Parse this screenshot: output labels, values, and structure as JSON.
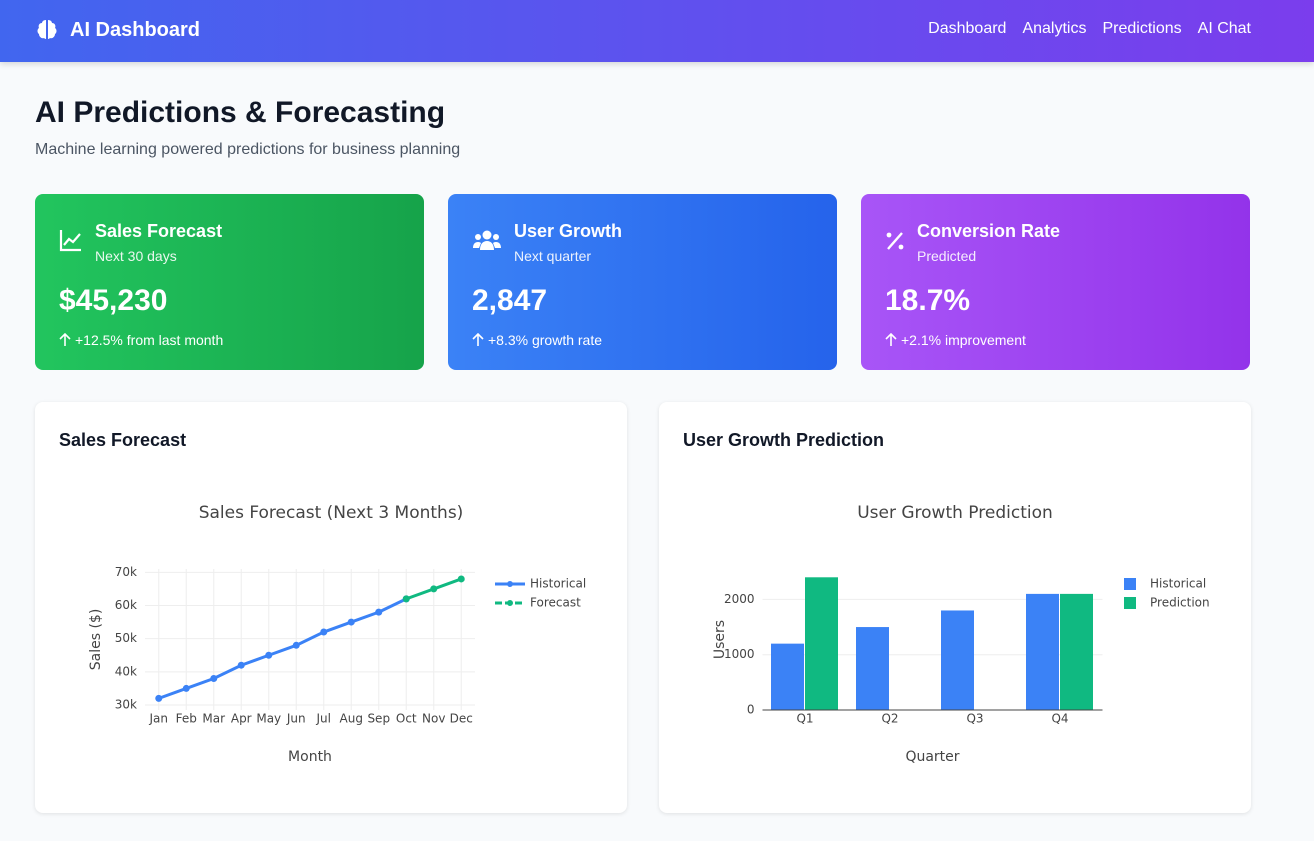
{
  "nav": {
    "brand": "AI Dashboard",
    "links": [
      "Dashboard",
      "Analytics",
      "Predictions",
      "AI Chat"
    ]
  },
  "header": {
    "title": "AI Predictions & Forecasting",
    "subtitle": "Machine learning powered predictions for business planning"
  },
  "cards": [
    {
      "title": "Sales Forecast",
      "subtitle": "Next 30 days",
      "value": "$45,230",
      "change": "+12.5% from last month"
    },
    {
      "title": "User Growth",
      "subtitle": "Next quarter",
      "value": "2,847",
      "change": "+8.3% growth rate"
    },
    {
      "title": "Conversion Rate",
      "subtitle": "Predicted",
      "value": "18.7%",
      "change": "+2.1% improvement"
    }
  ],
  "panels": [
    {
      "title": "Sales Forecast"
    },
    {
      "title": "User Growth Prediction"
    }
  ],
  "chart_data": [
    {
      "type": "line",
      "title": "Sales Forecast (Next 3 Months)",
      "x_label": "Month",
      "y_label": "Sales ($)",
      "categories": [
        "Jan",
        "Feb",
        "Mar",
        "Apr",
        "May",
        "Jun",
        "Jul",
        "Aug",
        "Sep",
        "Oct",
        "Nov",
        "Dec"
      ],
      "series": [
        {
          "name": "Historical",
          "color": "#3b82f6",
          "values": [
            32000,
            35000,
            38000,
            42000,
            45000,
            48000,
            52000,
            55000,
            58000,
            62000,
            null,
            null
          ]
        },
        {
          "name": "Forecast",
          "color": "#10b981",
          "values": [
            null,
            null,
            null,
            null,
            null,
            null,
            null,
            null,
            null,
            62000,
            65000,
            68000
          ]
        }
      ],
      "ylim": [
        28500,
        71000
      ],
      "yticks": [
        {
          "value": 30000,
          "label": "30k"
        },
        {
          "value": 40000,
          "label": "40k"
        },
        {
          "value": 50000,
          "label": "50k"
        },
        {
          "value": 60000,
          "label": "60k"
        },
        {
          "value": 70000,
          "label": "70k"
        }
      ],
      "grid": true
    },
    {
      "type": "bar",
      "title": "User Growth Prediction",
      "x_label": "Quarter",
      "y_label": "Users",
      "categories": [
        "Q1",
        "Q2",
        "Q3",
        "Q4"
      ],
      "series": [
        {
          "name": "Historical",
          "color": "#3b82f6",
          "values": [
            1200,
            1500,
            1800,
            2100
          ]
        },
        {
          "name": "Prediction",
          "color": "#10b981",
          "values": [
            2400,
            null,
            null,
            2100
          ]
        }
      ],
      "ylim": [
        0,
        2550
      ],
      "yticks": [
        0,
        1000,
        2000
      ],
      "grid": true
    }
  ]
}
